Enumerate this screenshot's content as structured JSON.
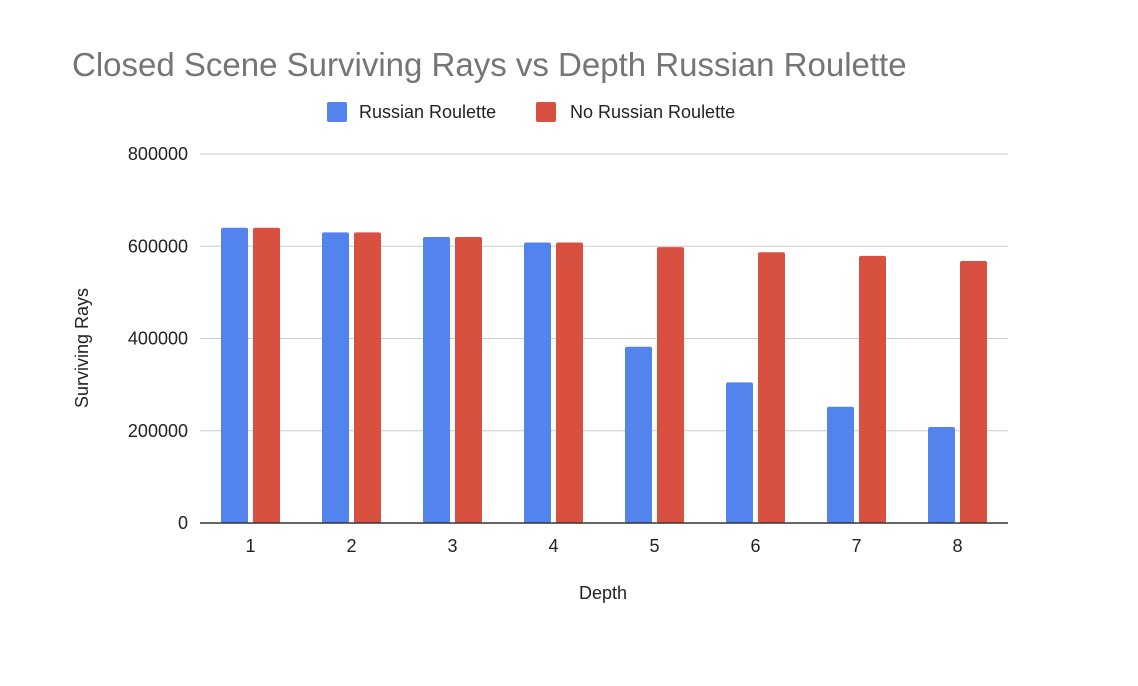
{
  "chart_data": {
    "type": "bar",
    "title": "Closed Scene Surviving Rays vs Depth Russian Roulette",
    "xlabel": "Depth",
    "ylabel": "Surviving Rays",
    "categories": [
      "1",
      "2",
      "3",
      "4",
      "5",
      "6",
      "7",
      "8"
    ],
    "series": [
      {
        "name": "Russian Roulette",
        "color": "#5384ed",
        "values": [
          640000,
          630000,
          620000,
          608000,
          382000,
          305000,
          252000,
          208000
        ]
      },
      {
        "name": "No Russian Roulette",
        "color": "#d85040",
        "values": [
          640000,
          630000,
          620000,
          608000,
          598000,
          587000,
          579000,
          568000
        ]
      }
    ],
    "ylim": [
      0,
      800000
    ],
    "yticks": [
      "0",
      "200000",
      "400000",
      "600000",
      "800000"
    ],
    "grid": true,
    "legend_position": "top"
  }
}
